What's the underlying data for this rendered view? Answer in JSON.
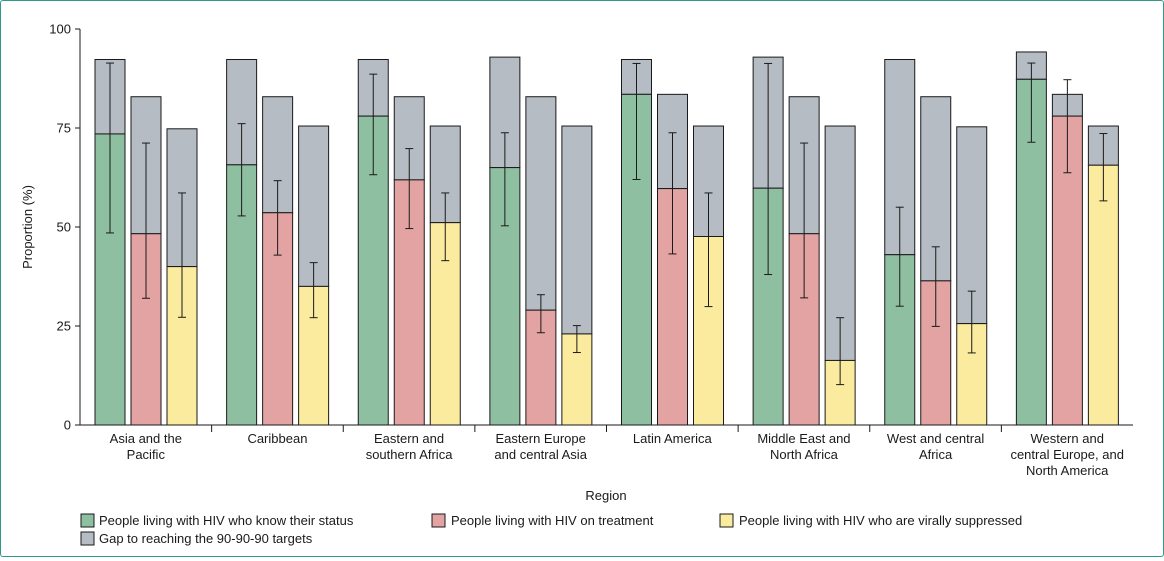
{
  "chart_data": {
    "type": "bar",
    "title": "",
    "xlabel": "Region",
    "ylabel": "Proportion (%)",
    "ylim": [
      0,
      100
    ],
    "yticks": [
      0,
      25,
      50,
      75,
      100
    ],
    "grid": false,
    "legend_placement": "bottom",
    "categories": [
      [
        "Asia and the",
        "Pacific"
      ],
      [
        "Caribbean"
      ],
      [
        "Eastern and",
        "southern Africa"
      ],
      [
        "Eastern Europe",
        "and central Asia"
      ],
      [
        "Latin America"
      ],
      [
        "Middle East and",
        "North Africa"
      ],
      [
        "West and central",
        "Africa"
      ],
      [
        "Western and",
        "central Europe, and",
        "North America"
      ]
    ],
    "series": [
      {
        "name": "People living with HIV who know their status",
        "color": "#8fbfa1",
        "values": [
          73.5,
          65.7,
          78.0,
          65.0,
          83.5,
          59.8,
          43.0,
          87.3
        ],
        "ci_low": [
          48.5,
          52.8,
          63.2,
          50.3,
          62.0,
          38.0,
          30.0,
          71.4
        ],
        "ci_high": [
          91.4,
          76.1,
          88.6,
          73.8,
          91.3,
          91.3,
          55.0,
          91.4
        ],
        "target": [
          92.3,
          92.3,
          92.3,
          92.9,
          92.3,
          92.9,
          92.3,
          94.2
        ]
      },
      {
        "name": "People living with HIV on treatment",
        "color": "#e3a3a3",
        "values": [
          48.3,
          53.6,
          61.9,
          29.0,
          59.7,
          48.3,
          36.4,
          78.0
        ],
        "ci_low": [
          32.0,
          42.9,
          49.6,
          23.3,
          43.2,
          32.1,
          24.9,
          63.7
        ],
        "ci_high": [
          71.2,
          61.7,
          69.8,
          32.9,
          73.8,
          71.2,
          45.0,
          87.2
        ],
        "target": [
          82.9,
          82.9,
          82.9,
          82.9,
          83.5,
          82.9,
          82.9,
          83.5
        ]
      },
      {
        "name": "People living with HIV who are virally suppressed",
        "color": "#fbeb9e",
        "values": [
          40.0,
          35.0,
          51.1,
          23.0,
          47.6,
          16.3,
          25.6,
          65.6
        ],
        "ci_low": [
          27.2,
          27.1,
          41.5,
          18.3,
          29.9,
          10.2,
          18.2,
          56.6
        ],
        "ci_high": [
          58.6,
          41.0,
          58.6,
          25.1,
          58.6,
          27.1,
          33.8,
          73.6
        ],
        "target": [
          74.8,
          75.5,
          75.5,
          75.5,
          75.5,
          75.5,
          75.3,
          75.5
        ]
      }
    ],
    "gap_series": {
      "name": "Gap to reaching the 90-90-90 targets",
      "color": "#b6bcc4"
    }
  }
}
